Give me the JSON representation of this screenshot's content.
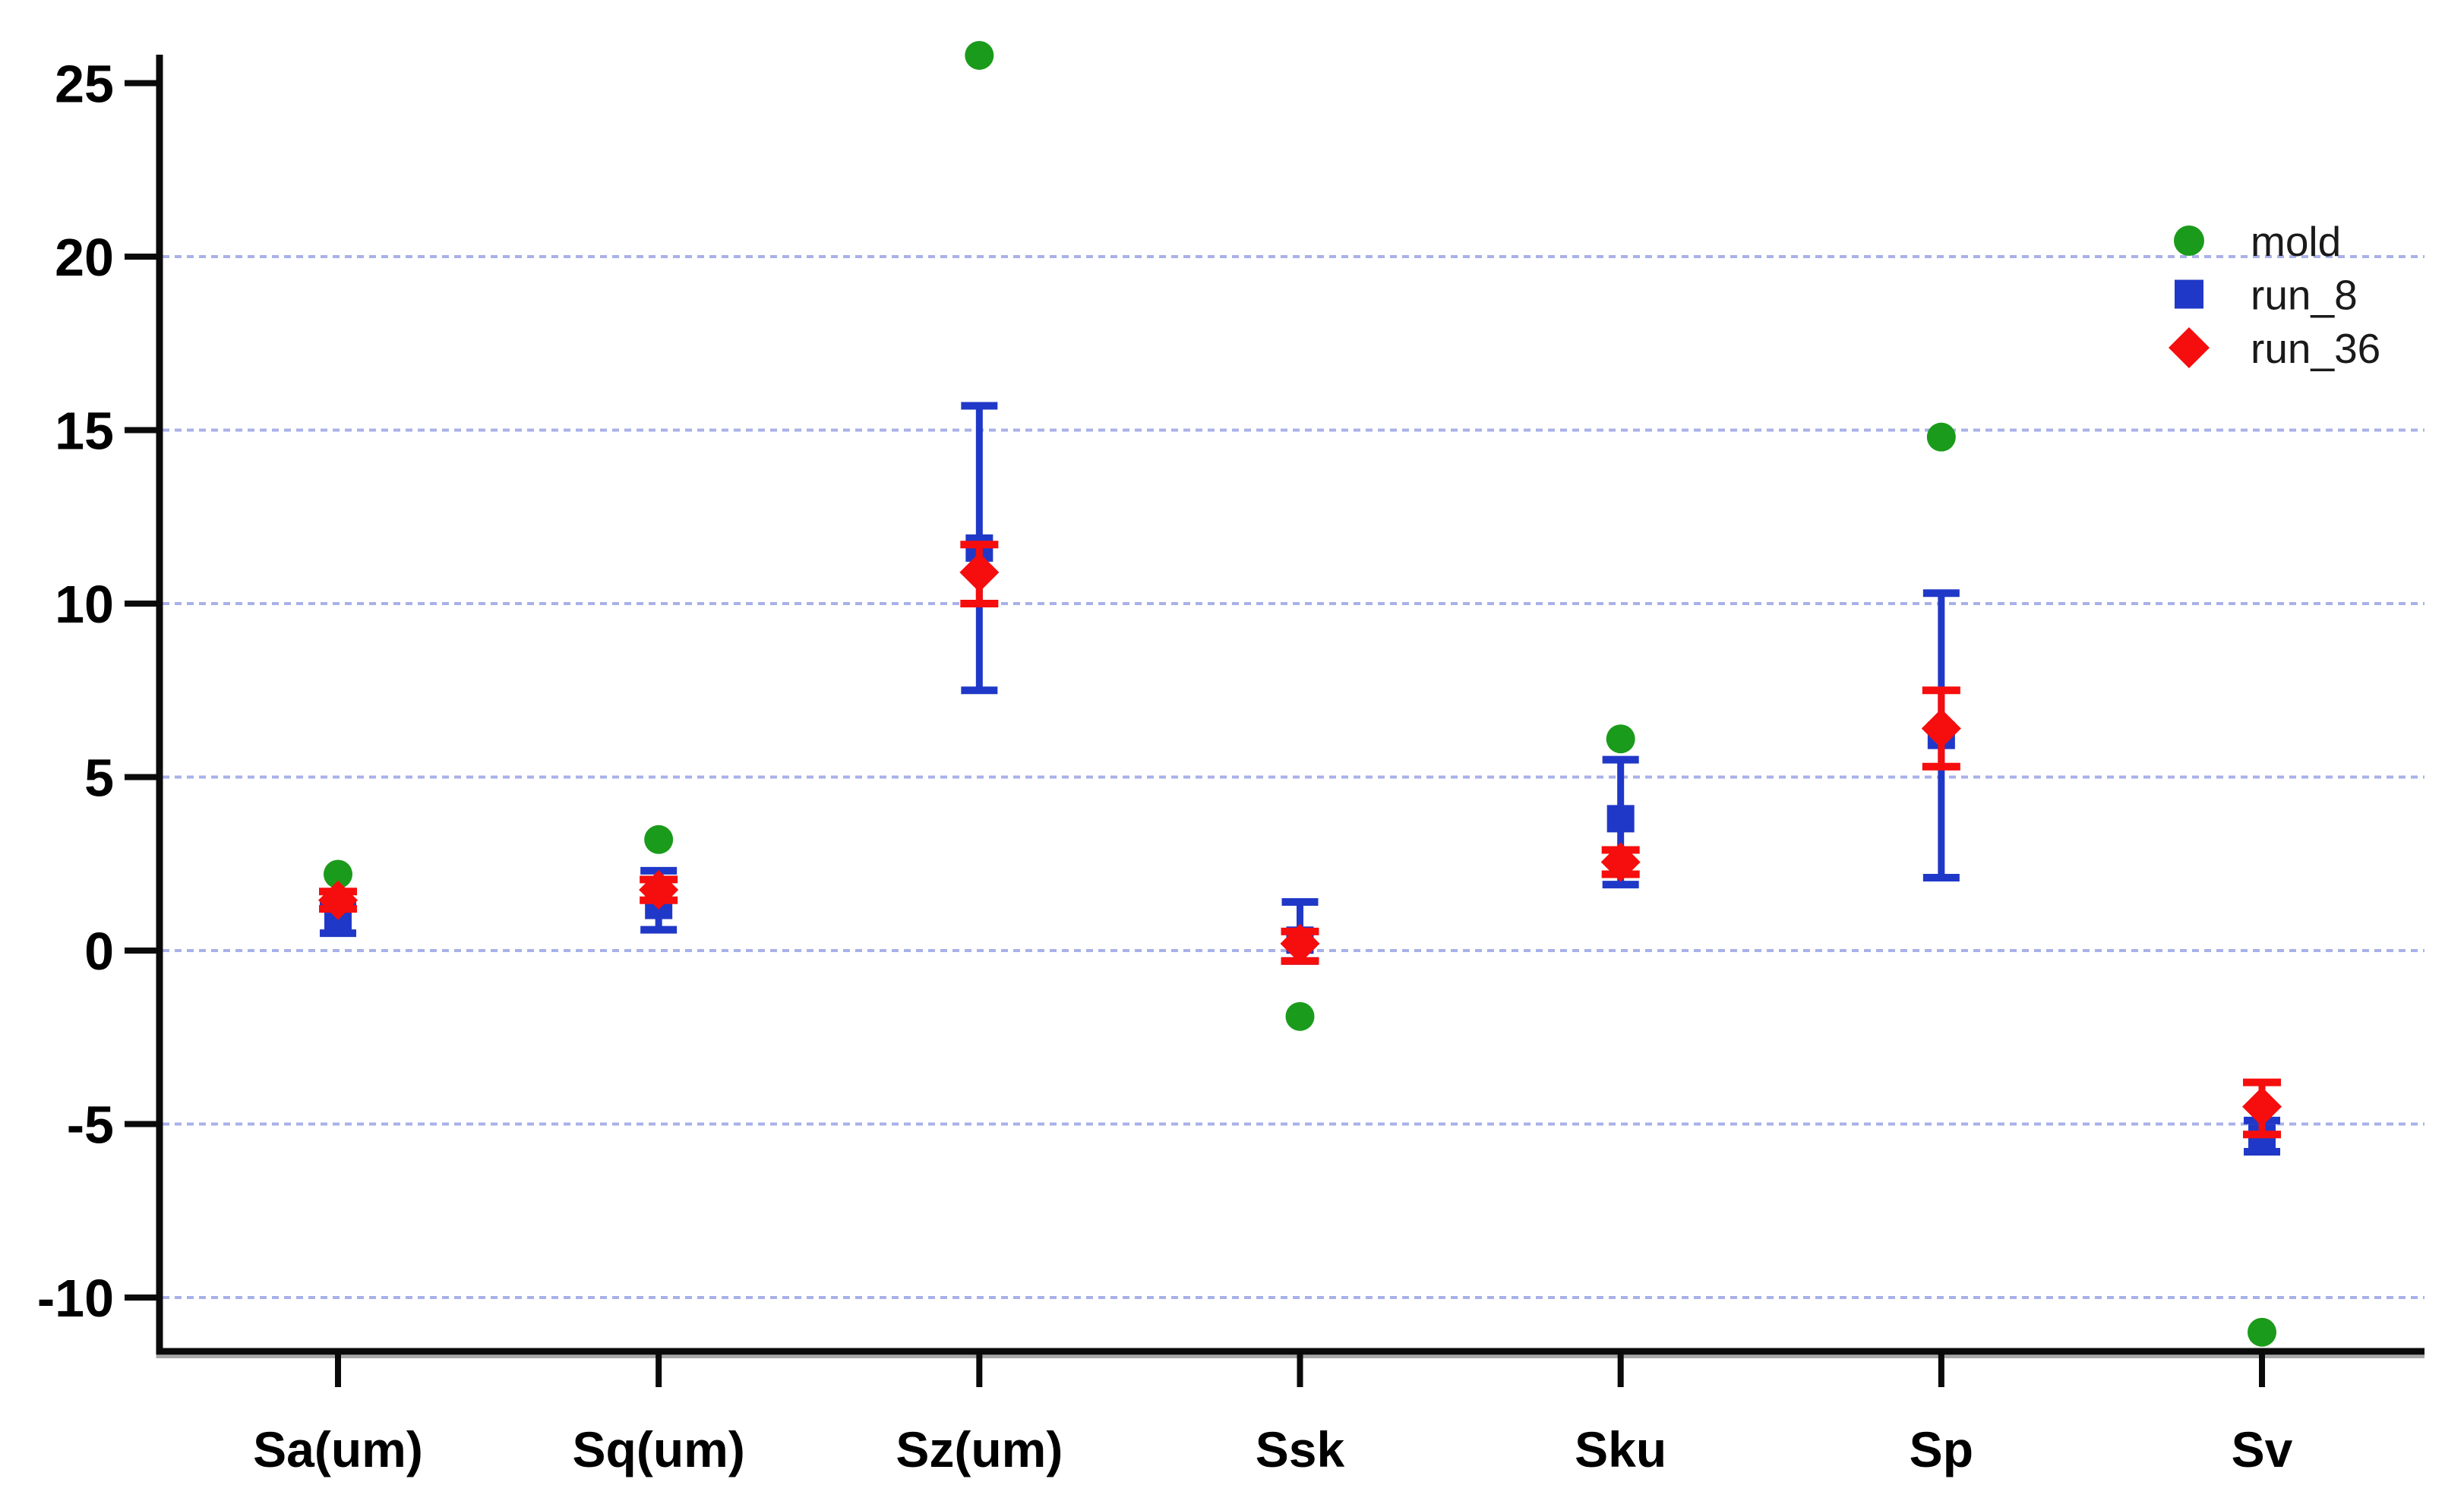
{
  "chart_data": {
    "type": "scatter",
    "title": "",
    "xlabel": "",
    "ylabel": "",
    "categories": [
      "Sa(um)",
      "Sq(um)",
      "Sz(um)",
      "Ssk",
      "Sku",
      "Sp",
      "Sv"
    ],
    "y_ticks": [
      25,
      20,
      15,
      10,
      5,
      0,
      -5,
      -10
    ],
    "grid_values": [
      20,
      15,
      10,
      5,
      0,
      -5,
      -10
    ],
    "ylim": [
      -11.6,
      26.0
    ],
    "grid": true,
    "legend_position": "upper right",
    "series": [
      {
        "name": "mold",
        "marker": "circle",
        "color": "#1b9b1b",
        "values": [
          2.2,
          3.2,
          25.8,
          -1.9,
          6.1,
          14.8,
          -11.0
        ]
      },
      {
        "name": "run_8",
        "marker": "square",
        "color": "#2038c8",
        "values": [
          0.9,
          1.3,
          11.6,
          0.3,
          3.8,
          6.2,
          -5.4
        ],
        "err_lo": [
          0.5,
          0.6,
          7.5,
          -0.3,
          1.9,
          2.1,
          -5.8
        ],
        "err_hi": [
          1.35,
          2.3,
          15.7,
          1.4,
          5.5,
          10.3,
          -4.9
        ]
      },
      {
        "name": "run_36",
        "marker": "diamond",
        "color": "#f60d0d",
        "values": [
          1.45,
          1.75,
          10.9,
          0.2,
          2.55,
          6.4,
          -4.5
        ],
        "err_lo": [
          1.2,
          1.45,
          10.0,
          -0.3,
          2.2,
          5.3,
          -5.3
        ],
        "err_hi": [
          1.7,
          2.05,
          11.7,
          0.55,
          2.9,
          7.5,
          -3.8
        ]
      }
    ],
    "colors": {
      "gridline": "#a8b1e8",
      "axis": "#0a0a0a",
      "axis_shadow": "#a8a8a8",
      "tick_label": "#000000",
      "legend_text": "#1a1a1a"
    }
  }
}
